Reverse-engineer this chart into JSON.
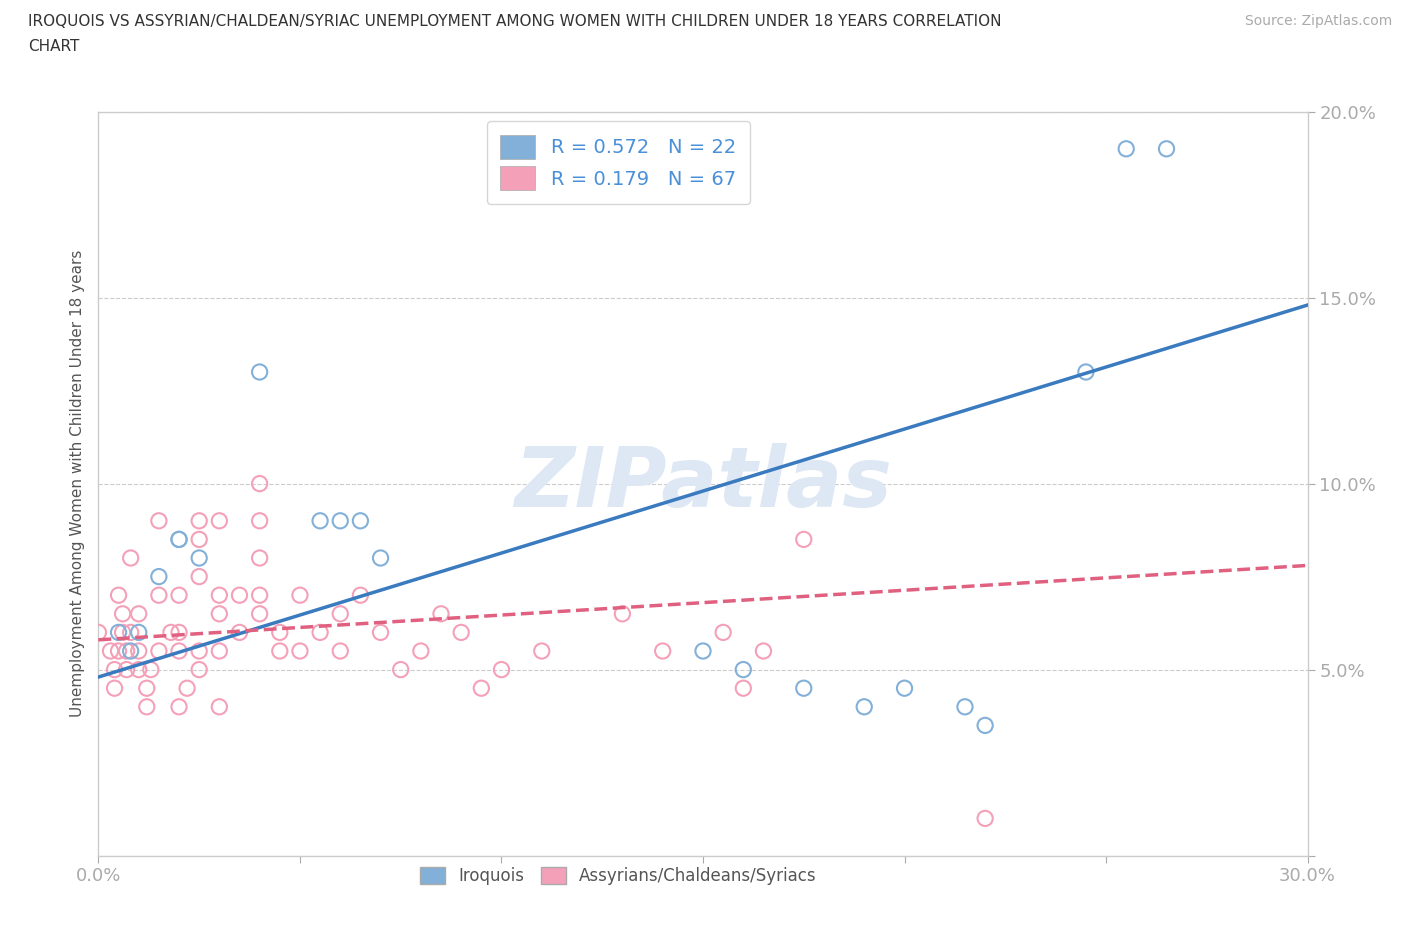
{
  "title_line1": "IROQUOIS VS ASSYRIAN/CHALDEAN/SYRIAC UNEMPLOYMENT AMONG WOMEN WITH CHILDREN UNDER 18 YEARS CORRELATION",
  "title_line2": "CHART",
  "source_text": "Source: ZipAtlas.com",
  "ylabel": "Unemployment Among Women with Children Under 18 years",
  "xlim": [
    0.0,
    0.3
  ],
  "ylim": [
    0.0,
    0.2
  ],
  "xticks": [
    0.0,
    0.05,
    0.1,
    0.15,
    0.2,
    0.25,
    0.3
  ],
  "yticks": [
    0.0,
    0.05,
    0.1,
    0.15,
    0.2
  ],
  "watermark": "ZIPatlas",
  "legend_iroquois_R": "0.572",
  "legend_iroquois_N": "22",
  "legend_assyrian_R": "0.179",
  "legend_assyrian_N": "67",
  "iroquois_color": "#82b0d8",
  "assyrian_color": "#f4a0b8",
  "trendline_iroquois_color": "#3a7abf",
  "trendline_assyrian_color": "#e06080",
  "iroquois_scatter": [
    [
      0.005,
      0.06
    ],
    [
      0.008,
      0.055
    ],
    [
      0.01,
      0.06
    ],
    [
      0.015,
      0.075
    ],
    [
      0.02,
      0.085
    ],
    [
      0.02,
      0.085
    ],
    [
      0.025,
      0.08
    ],
    [
      0.04,
      0.13
    ],
    [
      0.055,
      0.09
    ],
    [
      0.06,
      0.09
    ],
    [
      0.065,
      0.09
    ],
    [
      0.07,
      0.08
    ],
    [
      0.15,
      0.055
    ],
    [
      0.16,
      0.05
    ],
    [
      0.175,
      0.045
    ],
    [
      0.19,
      0.04
    ],
    [
      0.2,
      0.045
    ],
    [
      0.215,
      0.04
    ],
    [
      0.22,
      0.035
    ],
    [
      0.245,
      0.13
    ],
    [
      0.255,
      0.19
    ],
    [
      0.265,
      0.19
    ]
  ],
  "assyrian_scatter": [
    [
      0.0,
      0.06
    ],
    [
      0.003,
      0.055
    ],
    [
      0.004,
      0.05
    ],
    [
      0.004,
      0.045
    ],
    [
      0.005,
      0.07
    ],
    [
      0.005,
      0.055
    ],
    [
      0.006,
      0.065
    ],
    [
      0.006,
      0.06
    ],
    [
      0.007,
      0.05
    ],
    [
      0.007,
      0.055
    ],
    [
      0.008,
      0.06
    ],
    [
      0.008,
      0.08
    ],
    [
      0.01,
      0.065
    ],
    [
      0.01,
      0.05
    ],
    [
      0.01,
      0.055
    ],
    [
      0.012,
      0.04
    ],
    [
      0.012,
      0.045
    ],
    [
      0.013,
      0.05
    ],
    [
      0.015,
      0.09
    ],
    [
      0.015,
      0.07
    ],
    [
      0.015,
      0.055
    ],
    [
      0.018,
      0.06
    ],
    [
      0.02,
      0.06
    ],
    [
      0.02,
      0.07
    ],
    [
      0.02,
      0.04
    ],
    [
      0.02,
      0.055
    ],
    [
      0.022,
      0.045
    ],
    [
      0.025,
      0.05
    ],
    [
      0.025,
      0.055
    ],
    [
      0.025,
      0.075
    ],
    [
      0.025,
      0.085
    ],
    [
      0.025,
      0.09
    ],
    [
      0.03,
      0.055
    ],
    [
      0.03,
      0.065
    ],
    [
      0.03,
      0.07
    ],
    [
      0.03,
      0.09
    ],
    [
      0.03,
      0.04
    ],
    [
      0.035,
      0.06
    ],
    [
      0.035,
      0.07
    ],
    [
      0.04,
      0.065
    ],
    [
      0.04,
      0.07
    ],
    [
      0.04,
      0.08
    ],
    [
      0.04,
      0.09
    ],
    [
      0.04,
      0.1
    ],
    [
      0.045,
      0.055
    ],
    [
      0.045,
      0.06
    ],
    [
      0.05,
      0.055
    ],
    [
      0.05,
      0.07
    ],
    [
      0.055,
      0.06
    ],
    [
      0.06,
      0.055
    ],
    [
      0.06,
      0.065
    ],
    [
      0.065,
      0.07
    ],
    [
      0.07,
      0.06
    ],
    [
      0.075,
      0.05
    ],
    [
      0.08,
      0.055
    ],
    [
      0.085,
      0.065
    ],
    [
      0.09,
      0.06
    ],
    [
      0.095,
      0.045
    ],
    [
      0.1,
      0.05
    ],
    [
      0.11,
      0.055
    ],
    [
      0.13,
      0.065
    ],
    [
      0.14,
      0.055
    ],
    [
      0.155,
      0.06
    ],
    [
      0.16,
      0.045
    ],
    [
      0.165,
      0.055
    ],
    [
      0.175,
      0.085
    ],
    [
      0.22,
      0.01
    ]
  ],
  "trendline_iroquois": [
    [
      0.0,
      0.048
    ],
    [
      0.3,
      0.148
    ]
  ],
  "trendline_assyrian": [
    [
      0.0,
      0.058
    ],
    [
      0.3,
      0.078
    ]
  ]
}
